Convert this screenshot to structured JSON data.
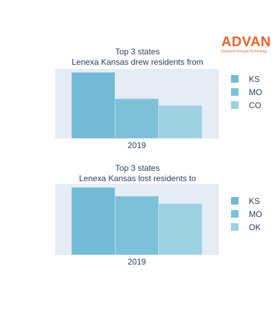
{
  "logo": {
    "word": "ADVAN",
    "tagline": "Research through Technology"
  },
  "colors": {
    "plot_bg": "#e5ecf6",
    "brand": "#e8632c"
  },
  "chart_data": [
    {
      "type": "bar",
      "title_lines": [
        "Top 3 states",
        "Lenexa Kansas drew residents from"
      ],
      "categories": [
        "2019"
      ],
      "series": [
        {
          "name": "KS",
          "values": [
            100
          ],
          "color": "#72bbd7"
        },
        {
          "name": "MO",
          "values": [
            60
          ],
          "color": "#7dc0da"
        },
        {
          "name": "CO",
          "values": [
            50
          ],
          "color": "#9dd0e3"
        }
      ],
      "ylim": [
        0,
        100
      ],
      "grid": false,
      "legend": "right"
    },
    {
      "type": "bar",
      "title_lines": [
        "Top 3 states",
        "Lenexa Kansas lost residents to"
      ],
      "categories": [
        "2019"
      ],
      "series": [
        {
          "name": "KS",
          "values": [
            100
          ],
          "color": "#72bbd7"
        },
        {
          "name": "MO",
          "values": [
            87
          ],
          "color": "#7dc0da"
        },
        {
          "name": "OK",
          "values": [
            76
          ],
          "color": "#9dd0e3"
        }
      ],
      "ylim": [
        0,
        100
      ],
      "grid": false,
      "legend": "right"
    }
  ]
}
